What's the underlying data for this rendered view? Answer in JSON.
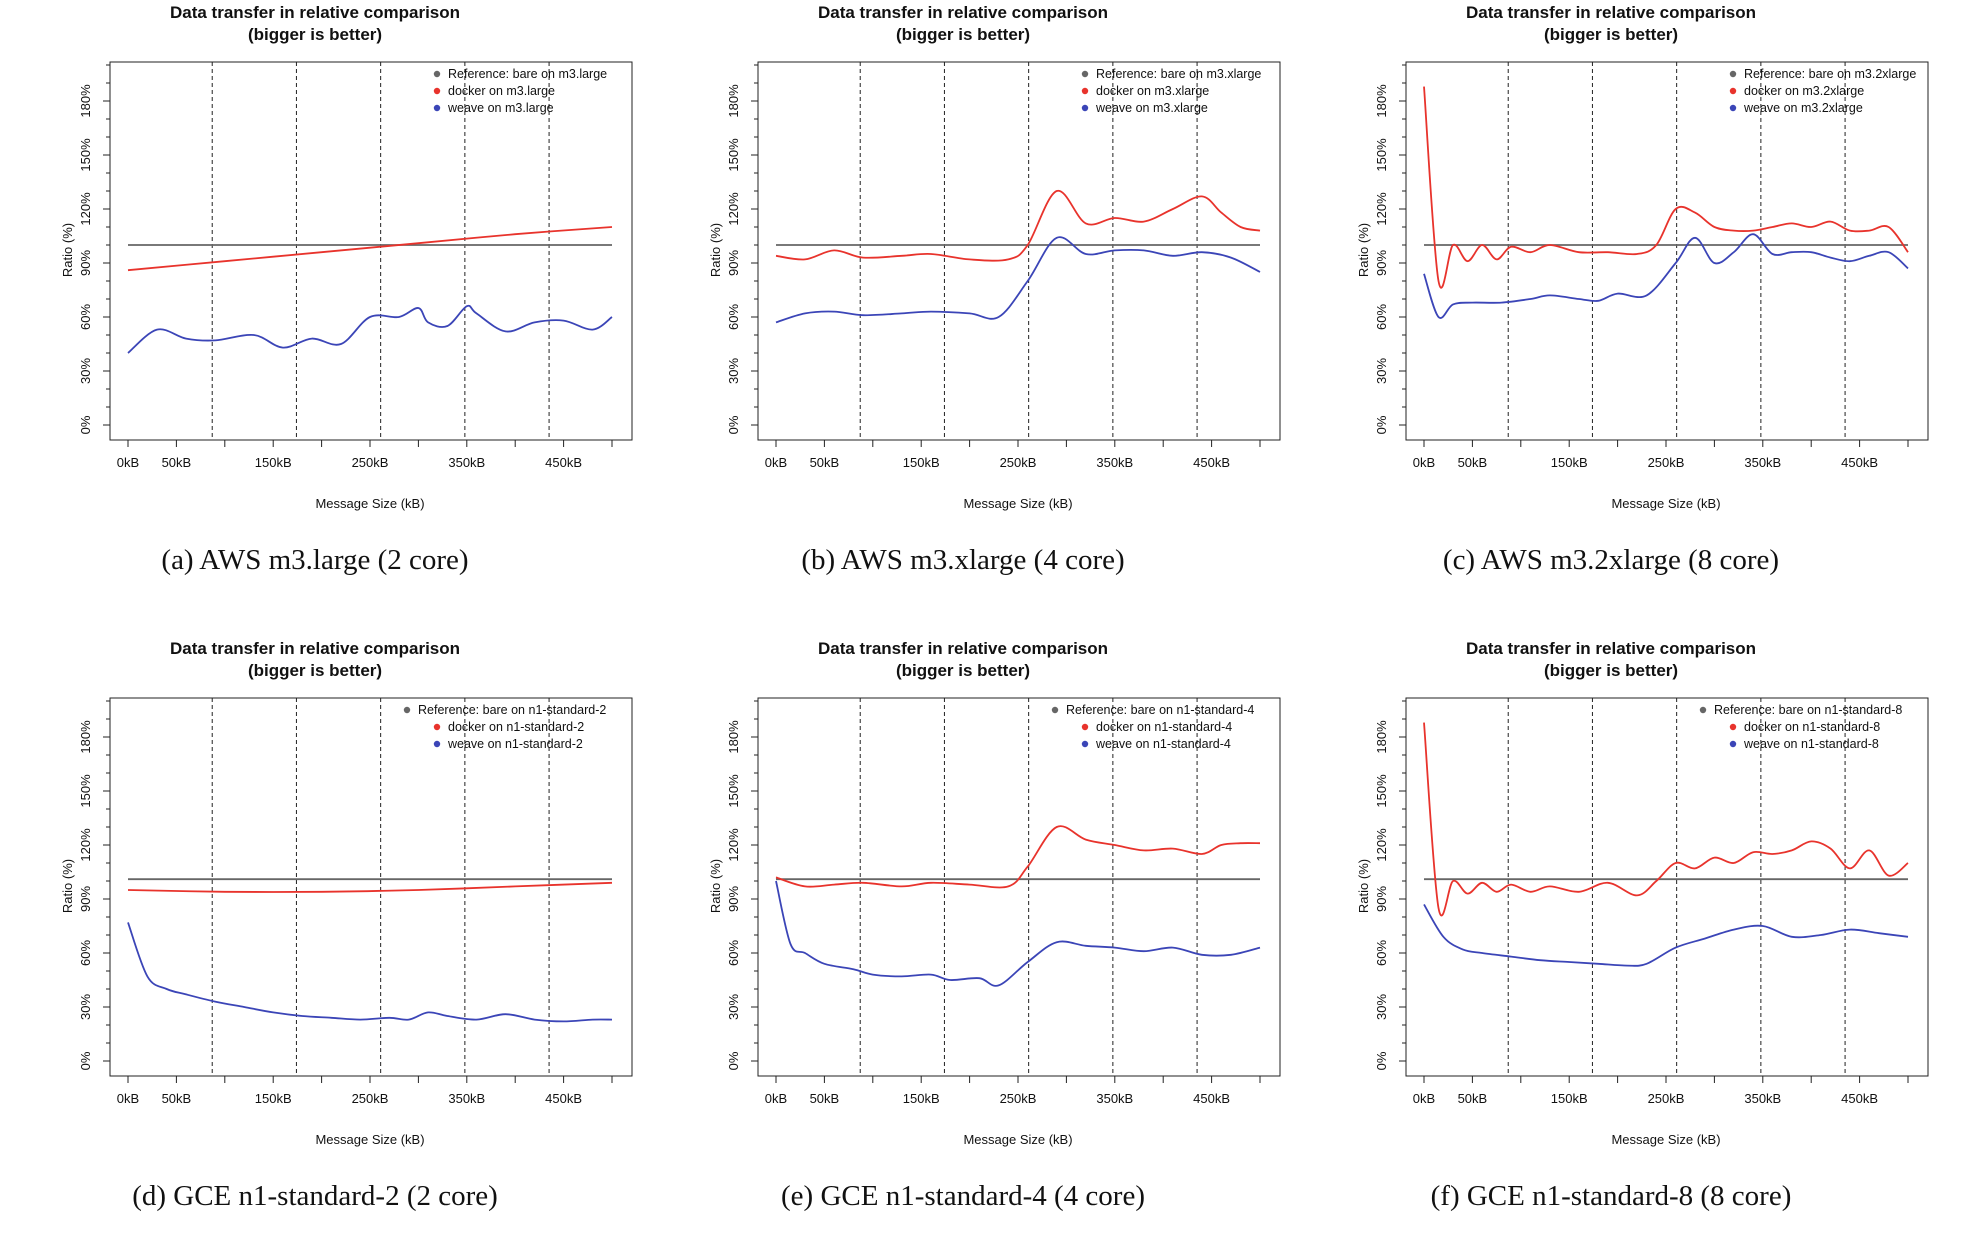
{
  "chart_data": [
    {
      "type": "line",
      "title": "Data transfer in relative comparison",
      "subtitle": "(bigger is better)",
      "caption": "(a)  AWS m3.large (2 core)",
      "xlabel": "Message Size (kB)",
      "ylabel": "Ratio (%)",
      "x_tick_labels": [
        "0kB",
        "50kB",
        "150kB",
        "250kB",
        "350kB",
        "450kB"
      ],
      "x_ticks": [
        0,
        50,
        150,
        250,
        350,
        450
      ],
      "y_tick_labels": [
        "0%",
        "30%",
        "60%",
        "90%",
        "120%",
        "150%",
        "180%"
      ],
      "y_ticks": [
        0,
        30,
        60,
        90,
        120,
        150,
        180
      ],
      "xlim": [
        0,
        500
      ],
      "ylim": [
        0,
        200
      ],
      "vlines": [
        87,
        174,
        261,
        348,
        435
      ],
      "legend_position": "top-right",
      "grid": false,
      "series": [
        {
          "name": "Reference: bare on m3.large",
          "color": "#666666",
          "x": [
            0,
            500
          ],
          "values": [
            100,
            100
          ]
        },
        {
          "name": "docker on m3.large",
          "color": "#e8332c",
          "x": [
            0,
            100,
            200,
            300,
            400,
            500
          ],
          "values": [
            86,
            91,
            96,
            101,
            106,
            110
          ]
        },
        {
          "name": "weave on m3.large",
          "color": "#3b45b7",
          "x": [
            0,
            30,
            60,
            90,
            130,
            160,
            190,
            220,
            250,
            280,
            300,
            310,
            330,
            350,
            360,
            390,
            420,
            450,
            480,
            500
          ],
          "values": [
            40,
            53,
            48,
            47,
            50,
            43,
            48,
            45,
            60,
            60,
            65,
            57,
            55,
            66,
            62,
            52,
            57,
            58,
            53,
            60
          ]
        }
      ]
    },
    {
      "type": "line",
      "title": "Data transfer in relative comparison",
      "subtitle": "(bigger is better)",
      "caption": "(b)  AWS m3.xlarge (4 core)",
      "xlabel": "Message Size (kB)",
      "ylabel": "Ratio (%)",
      "x_tick_labels": [
        "0kB",
        "50kB",
        "150kB",
        "250kB",
        "350kB",
        "450kB"
      ],
      "x_ticks": [
        0,
        50,
        150,
        250,
        350,
        450
      ],
      "y_tick_labels": [
        "0%",
        "30%",
        "60%",
        "90%",
        "120%",
        "150%",
        "180%"
      ],
      "y_ticks": [
        0,
        30,
        60,
        90,
        120,
        150,
        180
      ],
      "xlim": [
        0,
        500
      ],
      "ylim": [
        0,
        200
      ],
      "vlines": [
        87,
        174,
        261,
        348,
        435
      ],
      "legend_position": "top-right",
      "grid": false,
      "series": [
        {
          "name": "Reference: bare on m3.xlarge",
          "color": "#666666",
          "x": [
            0,
            500
          ],
          "values": [
            100,
            100
          ]
        },
        {
          "name": "docker on m3.xlarge",
          "color": "#e8332c",
          "x": [
            0,
            30,
            60,
            90,
            130,
            160,
            200,
            240,
            260,
            290,
            320,
            350,
            380,
            410,
            440,
            460,
            480,
            500
          ],
          "values": [
            94,
            92,
            97,
            93,
            94,
            95,
            92,
            92,
            100,
            130,
            112,
            115,
            113,
            120,
            127,
            118,
            110,
            108
          ]
        },
        {
          "name": "weave on m3.xlarge",
          "color": "#3b45b7",
          "x": [
            0,
            30,
            60,
            90,
            130,
            160,
            200,
            230,
            260,
            290,
            320,
            350,
            380,
            410,
            440,
            470,
            500
          ],
          "values": [
            57,
            62,
            63,
            61,
            62,
            63,
            62,
            60,
            80,
            104,
            95,
            97,
            97,
            94,
            96,
            93,
            85
          ]
        }
      ]
    },
    {
      "type": "line",
      "title": "Data transfer in relative comparison",
      "subtitle": "(bigger is better)",
      "caption": "(c)  AWS m3.2xlarge (8 core)",
      "xlabel": "Message Size (kB)",
      "ylabel": "Ratio (%)",
      "x_tick_labels": [
        "0kB",
        "50kB",
        "150kB",
        "250kB",
        "350kB",
        "450kB"
      ],
      "x_ticks": [
        0,
        50,
        150,
        250,
        350,
        450
      ],
      "y_tick_labels": [
        "0%",
        "30%",
        "60%",
        "90%",
        "120%",
        "150%",
        "180%"
      ],
      "y_ticks": [
        0,
        30,
        60,
        90,
        120,
        150,
        180
      ],
      "xlim": [
        0,
        500
      ],
      "ylim": [
        0,
        200
      ],
      "vlines": [
        87,
        174,
        261,
        348,
        435
      ],
      "legend_position": "top-right",
      "grid": false,
      "series": [
        {
          "name": "Reference: bare on m3.2xlarge",
          "color": "#666666",
          "x": [
            0,
            500
          ],
          "values": [
            100,
            100
          ]
        },
        {
          "name": "docker on m3.2xlarge",
          "color": "#e8332c",
          "x": [
            0,
            15,
            30,
            45,
            60,
            75,
            90,
            110,
            130,
            160,
            190,
            220,
            240,
            260,
            280,
            300,
            320,
            340,
            360,
            380,
            400,
            420,
            440,
            460,
            480,
            500
          ],
          "values": [
            188,
            80,
            100,
            91,
            100,
            92,
            99,
            96,
            100,
            96,
            96,
            95,
            100,
            120,
            118,
            110,
            108,
            108,
            110,
            112,
            110,
            113,
            108,
            108,
            110,
            96
          ]
        },
        {
          "name": "weave on m3.2xlarge",
          "color": "#3b45b7",
          "x": [
            0,
            15,
            30,
            50,
            80,
            110,
            130,
            160,
            180,
            200,
            230,
            260,
            280,
            300,
            320,
            340,
            360,
            380,
            400,
            420,
            440,
            460,
            480,
            500
          ],
          "values": [
            84,
            60,
            67,
            68,
            68,
            70,
            72,
            70,
            69,
            73,
            72,
            90,
            104,
            90,
            96,
            106,
            95,
            96,
            96,
            93,
            91,
            94,
            96,
            87
          ]
        }
      ]
    },
    {
      "type": "line",
      "title": "Data transfer in relative comparison",
      "subtitle": "(bigger is better)",
      "caption": "(d)  GCE n1-standard-2 (2 core)",
      "xlabel": "Message Size (kB)",
      "ylabel": "Ratio (%)",
      "x_tick_labels": [
        "0kB",
        "50kB",
        "150kB",
        "250kB",
        "350kB",
        "450kB"
      ],
      "x_ticks": [
        0,
        50,
        150,
        250,
        350,
        450
      ],
      "y_tick_labels": [
        "0%",
        "30%",
        "60%",
        "90%",
        "120%",
        "150%",
        "180%"
      ],
      "y_ticks": [
        0,
        30,
        60,
        90,
        120,
        150,
        180
      ],
      "xlim": [
        0,
        500
      ],
      "ylim": [
        0,
        200
      ],
      "vlines": [
        87,
        174,
        261,
        348,
        435
      ],
      "legend_position": "top-right",
      "grid": false,
      "series": [
        {
          "name": "Reference: bare on n1-standard-2",
          "color": "#666666",
          "x": [
            0,
            500
          ],
          "values": [
            101,
            101
          ]
        },
        {
          "name": "docker on n1-standard-2",
          "color": "#e8332c",
          "x": [
            0,
            100,
            200,
            300,
            400,
            500
          ],
          "values": [
            95,
            94,
            94,
            95,
            97,
            99
          ]
        },
        {
          "name": "weave on n1-standard-2",
          "color": "#3b45b7",
          "x": [
            0,
            20,
            40,
            60,
            90,
            120,
            150,
            180,
            210,
            240,
            270,
            290,
            310,
            330,
            360,
            390,
            420,
            450,
            480,
            500
          ],
          "values": [
            77,
            47,
            40,
            37,
            33,
            30,
            27,
            25,
            24,
            23,
            24,
            23,
            27,
            25,
            23,
            26,
            23,
            22,
            23,
            23
          ]
        }
      ]
    },
    {
      "type": "line",
      "title": "Data transfer in relative comparison",
      "subtitle": "(bigger is better)",
      "caption": "(e)  GCE n1-standard-4 (4 core)",
      "xlabel": "Message Size (kB)",
      "ylabel": "Ratio (%)",
      "x_tick_labels": [
        "0kB",
        "50kB",
        "150kB",
        "250kB",
        "350kB",
        "450kB"
      ],
      "x_ticks": [
        0,
        50,
        150,
        250,
        350,
        450
      ],
      "y_tick_labels": [
        "0%",
        "30%",
        "60%",
        "90%",
        "120%",
        "150%",
        "180%"
      ],
      "y_ticks": [
        0,
        30,
        60,
        90,
        120,
        150,
        180
      ],
      "xlim": [
        0,
        500
      ],
      "ylim": [
        0,
        200
      ],
      "vlines": [
        87,
        174,
        261,
        348,
        435
      ],
      "legend_position": "top-right",
      "grid": false,
      "series": [
        {
          "name": "Reference: bare on n1-standard-4",
          "color": "#666666",
          "x": [
            0,
            500
          ],
          "values": [
            101,
            101
          ]
        },
        {
          "name": "docker on n1-standard-4",
          "color": "#e8332c",
          "x": [
            0,
            30,
            60,
            90,
            130,
            160,
            200,
            240,
            260,
            290,
            320,
            350,
            380,
            410,
            440,
            460,
            480,
            500
          ],
          "values": [
            102,
            97,
            98,
            99,
            97,
            99,
            98,
            97,
            108,
            130,
            123,
            120,
            117,
            118,
            115,
            120,
            121,
            121
          ]
        },
        {
          "name": "weave on n1-standard-4",
          "color": "#3b45b7",
          "x": [
            0,
            15,
            30,
            50,
            80,
            100,
            130,
            160,
            180,
            210,
            230,
            260,
            290,
            320,
            350,
            380,
            410,
            440,
            470,
            500
          ],
          "values": [
            100,
            65,
            60,
            54,
            51,
            48,
            47,
            48,
            45,
            46,
            42,
            55,
            66,
            64,
            63,
            61,
            63,
            59,
            59,
            63
          ]
        }
      ]
    },
    {
      "type": "line",
      "title": "Data transfer in relative comparison",
      "subtitle": "(bigger is better)",
      "caption": "(f)  GCE n1-standard-8 (8 core)",
      "xlabel": "Message Size (kB)",
      "ylabel": "Ratio (%)",
      "x_tick_labels": [
        "0kB",
        "50kB",
        "150kB",
        "250kB",
        "350kB",
        "450kB"
      ],
      "x_ticks": [
        0,
        50,
        150,
        250,
        350,
        450
      ],
      "y_tick_labels": [
        "0%",
        "30%",
        "60%",
        "90%",
        "120%",
        "150%",
        "180%"
      ],
      "y_ticks": [
        0,
        30,
        60,
        90,
        120,
        150,
        180
      ],
      "xlim": [
        0,
        500
      ],
      "ylim": [
        0,
        200
      ],
      "vlines": [
        87,
        174,
        261,
        348,
        435
      ],
      "legend_position": "top-right",
      "grid": false,
      "series": [
        {
          "name": "Reference: bare on n1-standard-8",
          "color": "#666666",
          "x": [
            0,
            500
          ],
          "values": [
            101,
            101
          ]
        },
        {
          "name": "docker on n1-standard-8",
          "color": "#e8332c",
          "x": [
            0,
            15,
            30,
            45,
            60,
            75,
            90,
            110,
            130,
            160,
            190,
            220,
            240,
            260,
            280,
            300,
            320,
            340,
            360,
            380,
            400,
            420,
            440,
            460,
            480,
            500
          ],
          "values": [
            188,
            85,
            100,
            93,
            99,
            94,
            98,
            94,
            97,
            94,
            99,
            92,
            100,
            110,
            107,
            113,
            110,
            116,
            115,
            117,
            122,
            118,
            107,
            117,
            103,
            110
          ]
        },
        {
          "name": "weave on n1-standard-8",
          "color": "#3b45b7",
          "x": [
            0,
            20,
            40,
            60,
            90,
            120,
            150,
            180,
            210,
            230,
            260,
            290,
            320,
            350,
            380,
            410,
            440,
            470,
            500
          ],
          "values": [
            87,
            69,
            62,
            60,
            58,
            56,
            55,
            54,
            53,
            54,
            63,
            68,
            73,
            75,
            69,
            70,
            73,
            71,
            69
          ]
        }
      ]
    }
  ]
}
